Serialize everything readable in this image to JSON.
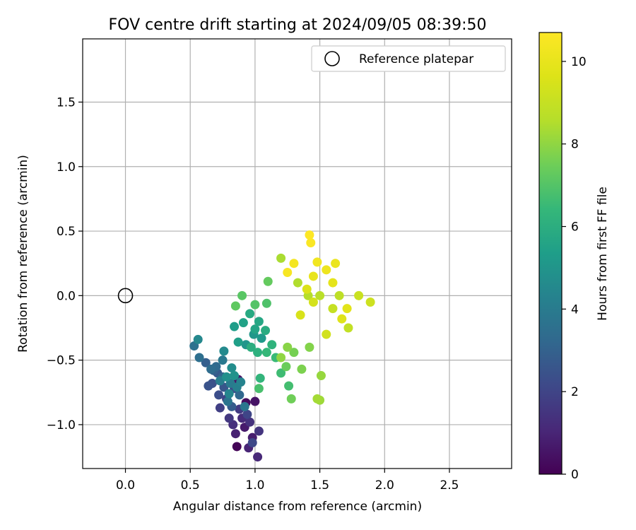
{
  "chart_data": {
    "type": "scatter",
    "title": "FOV centre drift starting at 2024/09/05 08:39:50",
    "xlabel": "Angular distance from reference (arcmin)",
    "ylabel": "Rotation from reference (arcmin)",
    "xlim": [
      -0.33,
      2.98
    ],
    "ylim": [
      -1.34,
      1.99
    ],
    "xticks": [
      0.0,
      0.5,
      1.0,
      1.5,
      2.0,
      2.5
    ],
    "xtick_labels": [
      "0.0",
      "0.5",
      "1.0",
      "1.5",
      "2.0",
      "2.5"
    ],
    "yticks": [
      -1.0,
      -0.5,
      0.0,
      0.5,
      1.0,
      1.5
    ],
    "ytick_labels": [
      "−1.0",
      "−0.5",
      "0.0",
      "0.5",
      "1.0",
      "1.5"
    ],
    "grid": true,
    "legend": {
      "position": "upper-right",
      "entries": [
        {
          "label": "Reference platepar",
          "marker": "open-circle",
          "color": "#000000"
        }
      ]
    },
    "reference_point": {
      "x": 0.0,
      "y": 0.0
    },
    "colorbar": {
      "label": "Hours from first FF file",
      "colormap": "viridis",
      "range": [
        0,
        10.7
      ],
      "ticks": [
        0,
        2,
        4,
        6,
        8,
        10
      ],
      "tick_labels": [
        "0",
        "2",
        "4",
        "6",
        "8",
        "10"
      ]
    },
    "points": [
      [
        0.86,
        -1.17,
        0.1
      ],
      [
        0.93,
        -0.83,
        0.3
      ],
      [
        1.0,
        -0.82,
        0.5
      ],
      [
        0.87,
        -0.65,
        0.6
      ],
      [
        0.92,
        -1.02,
        0.7
      ],
      [
        0.98,
        -1.1,
        0.8
      ],
      [
        0.85,
        -1.07,
        0.9
      ],
      [
        0.95,
        -1.18,
        1.0
      ],
      [
        1.02,
        -1.25,
        1.1
      ],
      [
        0.9,
        -0.95,
        1.2
      ],
      [
        0.83,
        -1.0,
        1.3
      ],
      [
        0.96,
        -0.98,
        1.4
      ],
      [
        1.03,
        -1.05,
        1.5
      ],
      [
        0.8,
        -0.95,
        1.6
      ],
      [
        0.88,
        -0.88,
        1.7
      ],
      [
        0.73,
        -0.87,
        1.8
      ],
      [
        0.78,
        -0.8,
        1.9
      ],
      [
        0.94,
        -0.92,
        2.0
      ],
      [
        0.98,
        -1.14,
        2.1
      ],
      [
        0.84,
        -0.72,
        2.2
      ],
      [
        0.72,
        -0.77,
        2.3
      ],
      [
        0.67,
        -0.68,
        2.4
      ],
      [
        0.64,
        -0.7,
        2.5
      ],
      [
        0.76,
        -0.71,
        2.6
      ],
      [
        0.71,
        -0.6,
        2.7
      ],
      [
        0.82,
        -0.86,
        2.8
      ],
      [
        0.62,
        -0.52,
        2.9
      ],
      [
        0.68,
        -0.58,
        3.0
      ],
      [
        0.75,
        -0.63,
        3.1
      ],
      [
        0.88,
        -0.77,
        3.2
      ],
      [
        0.7,
        -0.55,
        3.3
      ],
      [
        0.66,
        -0.57,
        3.4
      ],
      [
        0.57,
        -0.48,
        3.5
      ],
      [
        0.53,
        -0.39,
        3.6
      ],
      [
        0.79,
        -0.82,
        3.7
      ],
      [
        0.92,
        -0.86,
        3.8
      ],
      [
        0.75,
        -0.5,
        3.9
      ],
      [
        0.81,
        -0.68,
        4.0
      ],
      [
        0.73,
        -0.66,
        4.1
      ],
      [
        0.86,
        -0.71,
        4.2
      ],
      [
        0.89,
        -0.67,
        4.3
      ],
      [
        0.8,
        -0.76,
        4.4
      ],
      [
        0.56,
        -0.34,
        4.5
      ],
      [
        0.76,
        -0.43,
        4.6
      ],
      [
        0.82,
        -0.56,
        4.7
      ],
      [
        0.78,
        -0.63,
        4.8
      ],
      [
        0.84,
        -0.62,
        4.9
      ],
      [
        0.93,
        -0.38,
        5.0
      ],
      [
        0.99,
        -0.3,
        5.1
      ],
      [
        1.05,
        -0.33,
        5.2
      ],
      [
        0.84,
        -0.24,
        5.3
      ],
      [
        0.87,
        -0.36,
        5.4
      ],
      [
        0.91,
        -0.21,
        5.5
      ],
      [
        1.0,
        -0.26,
        5.6
      ],
      [
        1.03,
        -0.2,
        5.7
      ],
      [
        0.96,
        -0.14,
        5.8
      ],
      [
        1.08,
        -0.27,
        5.9
      ],
      [
        0.97,
        -0.4,
        6.0
      ],
      [
        1.02,
        -0.44,
        6.1
      ],
      [
        1.13,
        -0.38,
        6.2
      ],
      [
        1.04,
        -0.64,
        6.3
      ],
      [
        1.09,
        -0.44,
        6.4
      ],
      [
        1.16,
        -0.48,
        6.5
      ],
      [
        1.2,
        -0.6,
        6.6
      ],
      [
        1.26,
        -0.7,
        6.7
      ],
      [
        1.03,
        -0.72,
        6.8
      ],
      [
        1.09,
        -0.06,
        6.9
      ],
      [
        1.0,
        -0.07,
        7.0
      ],
      [
        0.9,
        0.0,
        7.1
      ],
      [
        0.85,
        -0.08,
        7.2
      ],
      [
        1.1,
        0.11,
        7.3
      ],
      [
        1.24,
        -0.55,
        7.4
      ],
      [
        1.28,
        -0.8,
        7.5
      ],
      [
        1.3,
        -0.44,
        7.6
      ],
      [
        1.36,
        -0.57,
        7.7
      ],
      [
        1.42,
        -0.4,
        7.8
      ],
      [
        1.25,
        -0.4,
        7.9
      ],
      [
        1.2,
        -0.48,
        8.0
      ],
      [
        1.51,
        -0.62,
        8.1
      ],
      [
        1.5,
        -0.81,
        8.2
      ],
      [
        1.48,
        -0.8,
        8.3
      ],
      [
        1.2,
        0.29,
        8.4
      ],
      [
        1.33,
        0.1,
        8.5
      ],
      [
        1.41,
        0.0,
        8.6
      ],
      [
        1.5,
        0.0,
        8.7
      ],
      [
        1.65,
        0.0,
        8.8
      ],
      [
        1.72,
        -0.25,
        8.9
      ],
      [
        1.6,
        -0.1,
        9.0
      ],
      [
        1.8,
        0.0,
        9.1
      ],
      [
        1.89,
        -0.05,
        9.2
      ],
      [
        1.55,
        -0.3,
        9.3
      ],
      [
        1.45,
        -0.05,
        9.4
      ],
      [
        1.35,
        -0.15,
        9.5
      ],
      [
        1.4,
        0.05,
        9.6
      ],
      [
        1.67,
        -0.18,
        9.7
      ],
      [
        1.71,
        -0.1,
        9.8
      ],
      [
        1.6,
        0.1,
        9.9
      ],
      [
        1.45,
        0.15,
        10.0
      ],
      [
        1.62,
        0.25,
        10.1
      ],
      [
        1.55,
        0.2,
        10.2
      ],
      [
        1.48,
        0.26,
        10.3
      ],
      [
        1.3,
        0.25,
        10.4
      ],
      [
        1.25,
        0.18,
        10.5
      ],
      [
        1.43,
        0.41,
        10.6
      ],
      [
        1.42,
        0.47,
        10.7
      ]
    ]
  }
}
